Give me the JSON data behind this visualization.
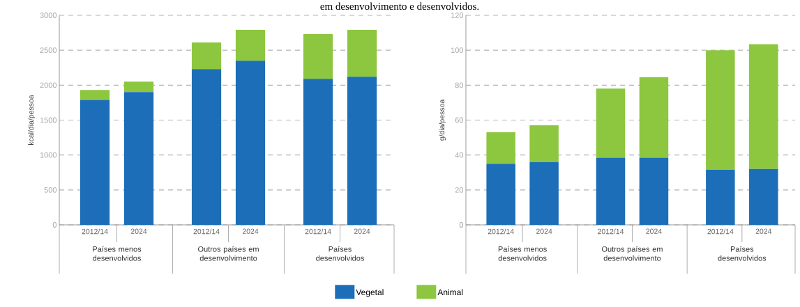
{
  "chart_data": [
    {
      "type": "bar",
      "stacked": true,
      "title": "em desenvolvimento e desenvolvidos.",
      "ylabel": "kcal/dia/pessoa",
      "categories": [
        "2012/14",
        "2024",
        "2012/14",
        "2024",
        "2012/14",
        "2024"
      ],
      "annotations": [
        "Países menos desenvolvidos",
        "Outros países em desenvolvimento",
        "Países desenvolvidos"
      ],
      "ylim": [
        0,
        3000
      ],
      "yticks": [
        0,
        500,
        1000,
        1500,
        2000,
        2500,
        3000
      ],
      "grid": "y",
      "legend": "bottom",
      "series": [
        {
          "name": "Vegetal",
          "color": "#1b6eb7",
          "values": [
            1790,
            1900,
            2230,
            2350,
            2090,
            2120
          ]
        },
        {
          "name": "Animal",
          "color": "#8dc63f",
          "values": [
            140,
            150,
            380,
            440,
            640,
            670
          ]
        }
      ]
    },
    {
      "type": "bar",
      "stacked": true,
      "ylabel": "g/dia/pessoa",
      "categories": [
        "2012/14",
        "2024",
        "2012/14",
        "2024",
        "2012/14",
        "2024"
      ],
      "annotations": [
        "Países menos desenvolvidos",
        "Outros países em desenvolvimento",
        "Países desenvolvidos"
      ],
      "ylim": [
        0,
        120
      ],
      "yticks": [
        0,
        20,
        40,
        60,
        80,
        100,
        120
      ],
      "grid": "y",
      "series": [
        {
          "color": "#1b6eb7",
          "values": [
            35,
            36,
            38.5,
            38.5,
            31.5,
            32
          ]
        },
        {
          "color": "#8dc63f",
          "values": [
            18,
            21,
            39.5,
            46,
            68.5,
            71.5
          ]
        }
      ]
    }
  ]
}
